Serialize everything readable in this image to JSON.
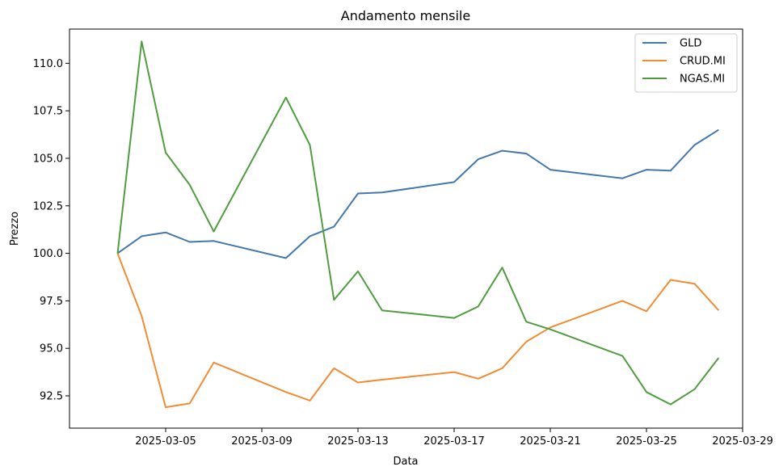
{
  "chart_data": {
    "type": "line",
    "title": "Andamento mensile",
    "xlabel": "Data",
    "ylabel": "Prezzo",
    "x": [
      "2025-03-03",
      "2025-03-04",
      "2025-03-05",
      "2025-03-06",
      "2025-03-07",
      "2025-03-10",
      "2025-03-11",
      "2025-03-12",
      "2025-03-13",
      "2025-03-14",
      "2025-03-17",
      "2025-03-18",
      "2025-03-19",
      "2025-03-20",
      "2025-03-21",
      "2025-03-24",
      "2025-03-25",
      "2025-03-26",
      "2025-03-27",
      "2025-03-28"
    ],
    "xlim": [
      "2025-03-01",
      "2025-03-29"
    ],
    "ylim": [
      90.8,
      111.8
    ],
    "x_ticks": [
      "2025-03-05",
      "2025-03-09",
      "2025-03-13",
      "2025-03-17",
      "2025-03-21",
      "2025-03-25",
      "2025-03-29"
    ],
    "y_ticks": [
      "92.5",
      "95.0",
      "97.5",
      "100.0",
      "102.5",
      "105.0",
      "107.5",
      "110.0"
    ],
    "grid": false,
    "legend_position": "top-right",
    "series": [
      {
        "name": "GLD",
        "color": "#4477aa",
        "values": [
          100.0,
          100.9,
          101.1,
          100.6,
          100.65,
          99.75,
          100.9,
          101.4,
          103.15,
          103.2,
          103.75,
          104.95,
          105.4,
          105.25,
          104.4,
          103.95,
          104.4,
          104.35,
          105.7,
          106.5
        ]
      },
      {
        "name": "CRUD.MI",
        "color": "#ef8c34",
        "values": [
          100.0,
          96.7,
          91.9,
          92.1,
          94.25,
          92.7,
          92.25,
          93.95,
          93.2,
          93.35,
          93.75,
          93.4,
          93.95,
          95.35,
          96.1,
          97.5,
          96.95,
          98.6,
          98.4,
          97.0
        ]
      },
      {
        "name": "NGAS.MI",
        "color": "#4f9d40",
        "values": [
          100.0,
          111.15,
          105.3,
          103.6,
          101.15,
          108.2,
          105.7,
          97.55,
          99.05,
          97.0,
          96.6,
          97.2,
          99.25,
          96.4,
          96.0,
          94.6,
          92.7,
          92.05,
          92.85,
          94.5
        ]
      }
    ]
  }
}
